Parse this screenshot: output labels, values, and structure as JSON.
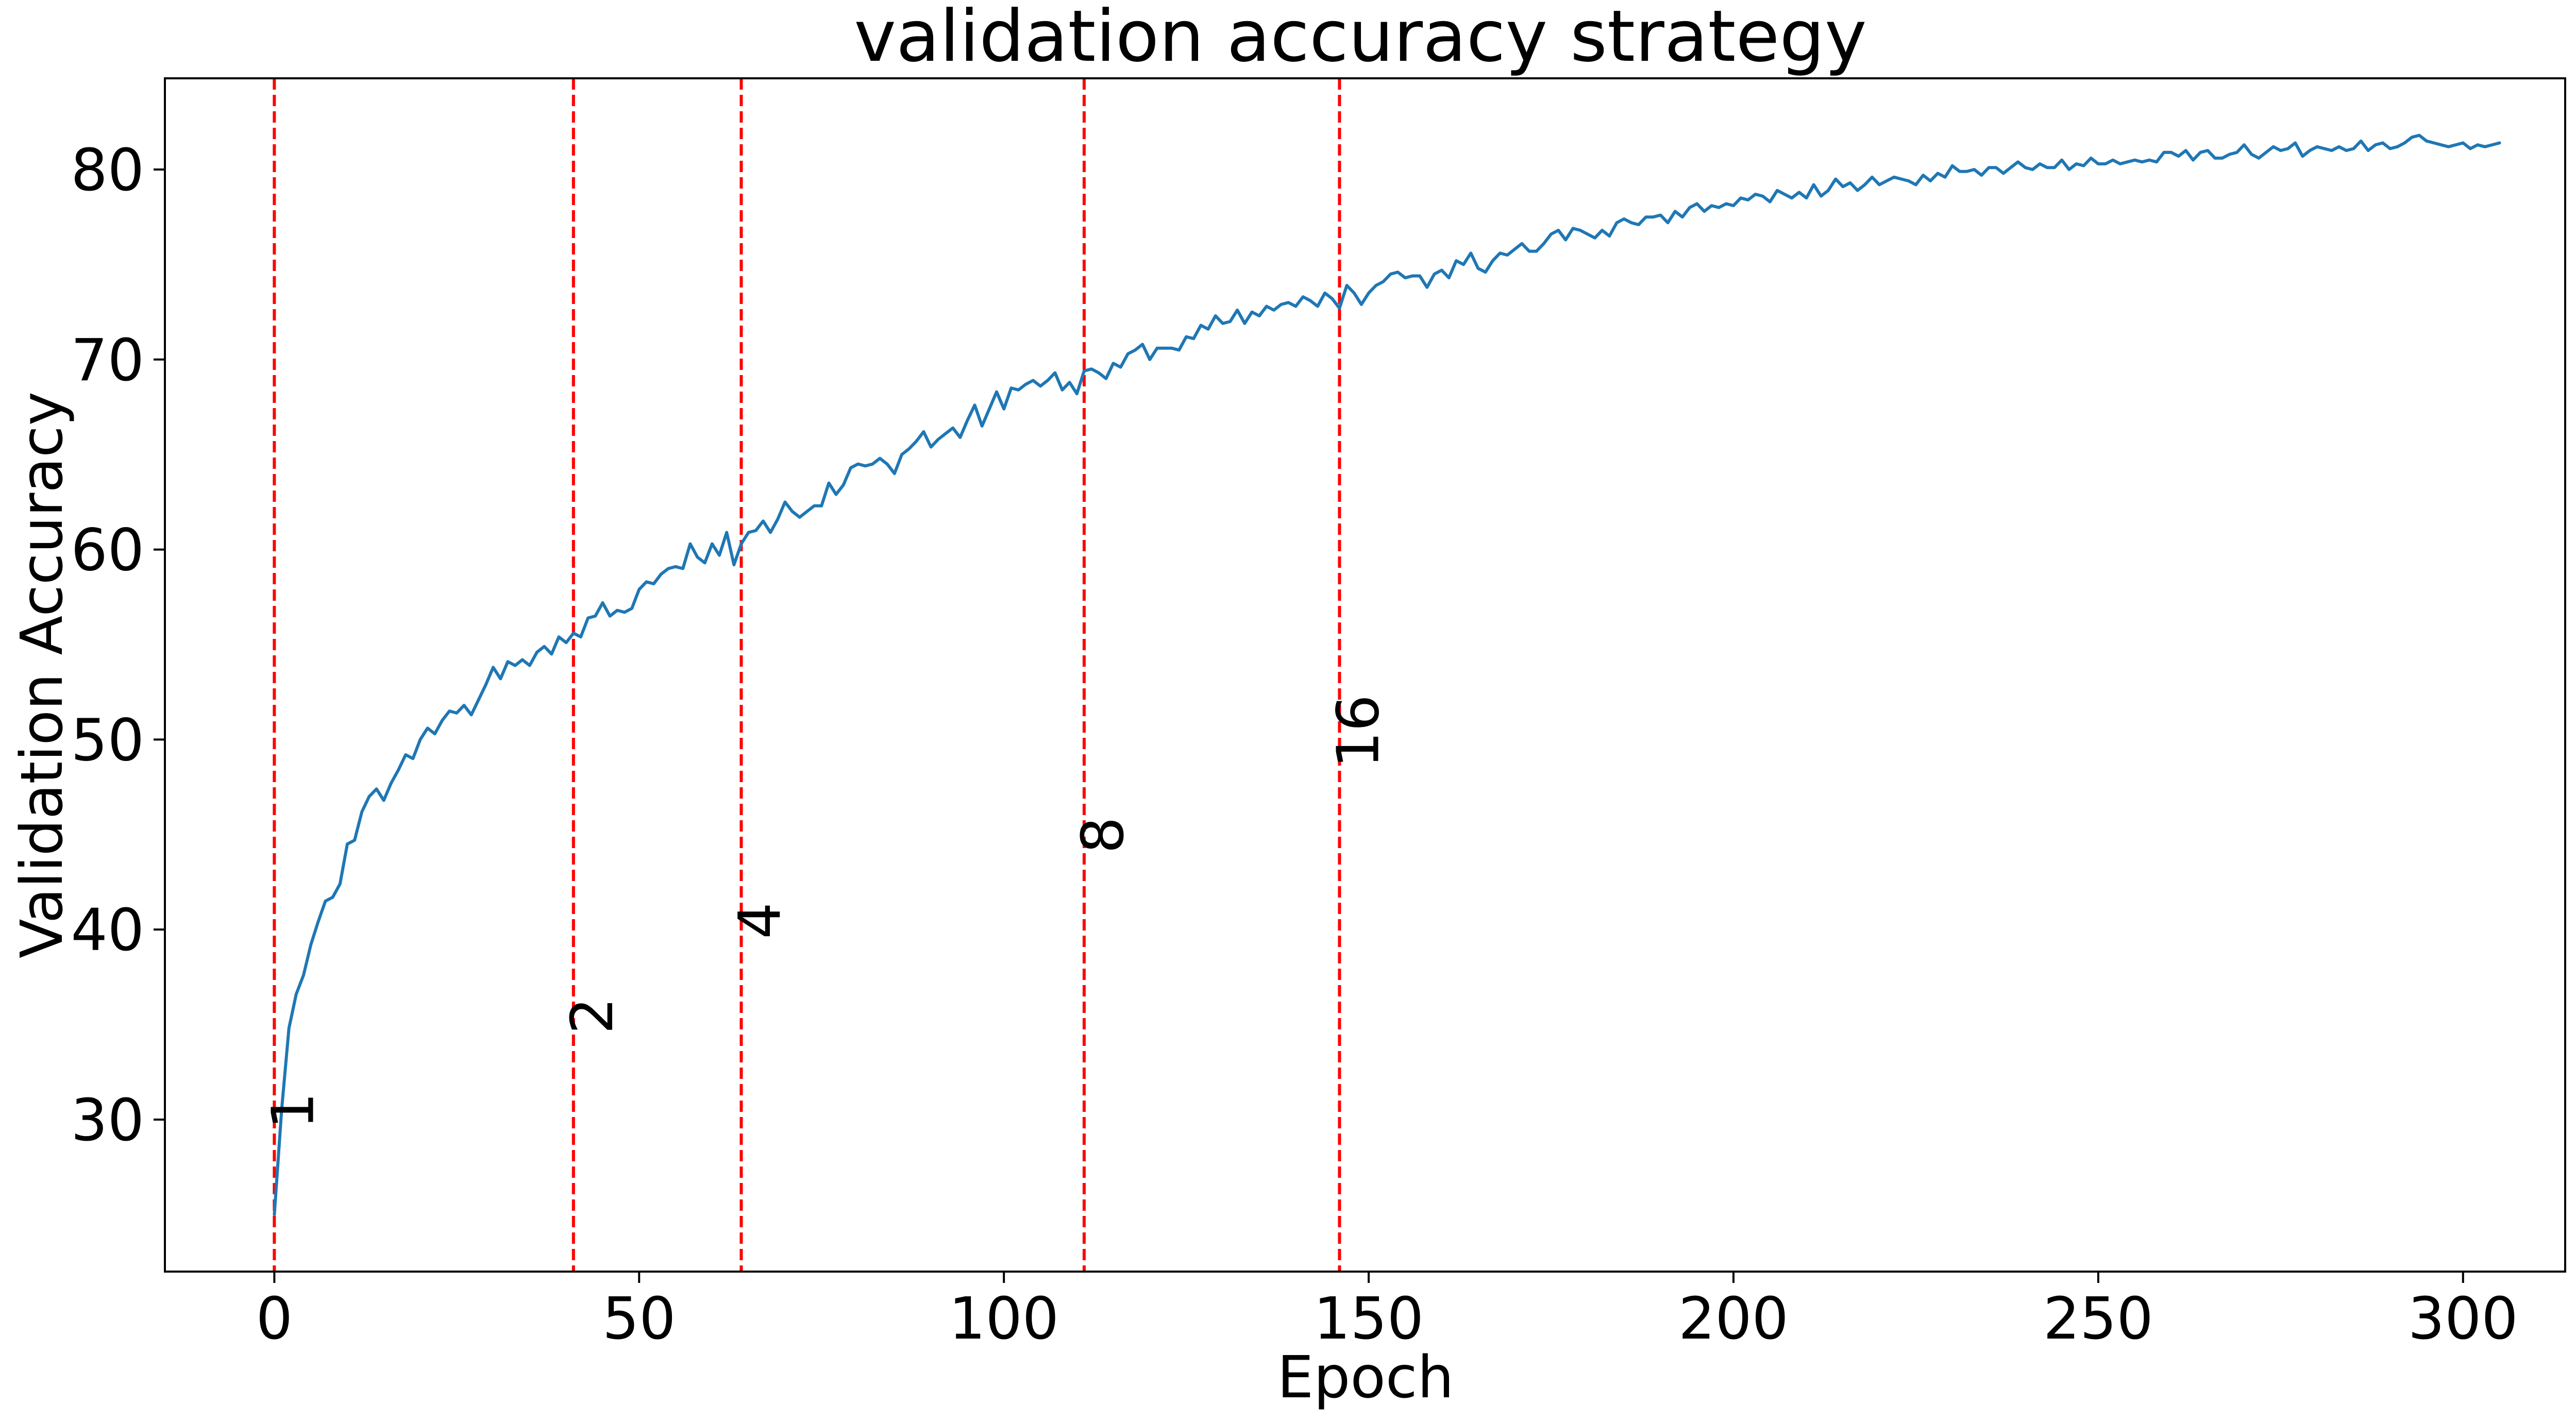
{
  "chart_data": {
    "type": "line",
    "title": "validation accuracy strategy",
    "xlabel": "Epoch",
    "ylabel": "Validation Accuracy",
    "xlim": [
      -15,
      314
    ],
    "ylim": [
      22,
      84.8
    ],
    "xticks": [
      0,
      50,
      100,
      150,
      200,
      250,
      300
    ],
    "yticks": [
      30,
      40,
      50,
      60,
      70,
      80
    ],
    "grid": false,
    "line_color": "#1f77b4",
    "marker_color": "#ff0000",
    "markers": [
      {
        "x": 0,
        "label": "1",
        "label_y": 29.5
      },
      {
        "x": 41,
        "label": "2",
        "label_y": 34.5
      },
      {
        "x": 64,
        "label": "4",
        "label_y": 39.5
      },
      {
        "x": 111,
        "label": "8",
        "label_y": 44
      },
      {
        "x": 146,
        "label": "16",
        "label_y": 48.5
      }
    ],
    "series": [
      {
        "x_start": 0,
        "values": [
          25.0,
          30.5,
          34.8,
          36.6,
          37.6,
          39.2,
          40.4,
          41.5,
          41.7,
          42.4,
          44.5,
          44.7,
          46.2,
          47.0,
          47.4,
          46.8,
          47.7,
          48.4,
          49.2,
          49.0,
          50.0,
          50.6,
          50.3,
          51.0,
          51.5,
          51.4,
          51.8,
          51.3,
          52.1,
          52.9,
          53.8,
          53.2,
          54.1,
          53.9,
          54.2,
          53.9,
          54.6,
          54.9,
          54.5,
          55.4,
          55.1,
          55.6,
          55.4,
          56.4,
          56.5,
          57.2,
          56.5,
          56.8,
          56.7,
          56.9,
          57.9,
          58.3,
          58.2,
          58.7,
          59.0,
          59.1,
          59.0,
          60.3,
          59.6,
          59.3,
          60.3,
          59.7,
          60.9,
          59.2,
          60.3,
          60.9,
          61.0,
          61.5,
          60.9,
          61.6,
          62.5,
          62.0,
          61.7,
          62.0,
          62.3,
          62.3,
          63.5,
          62.9,
          63.4,
          64.3,
          64.5,
          64.4,
          64.5,
          64.8,
          64.5,
          64.0,
          65.0,
          65.3,
          65.7,
          66.2,
          65.4,
          65.8,
          66.1,
          66.4,
          65.9,
          66.8,
          67.6,
          66.5,
          67.4,
          68.3,
          67.4,
          68.5,
          68.4,
          68.7,
          68.9,
          68.6,
          68.9,
          69.3,
          68.4,
          68.8,
          68.2,
          69.4,
          69.5,
          69.3,
          69.0,
          69.8,
          69.6,
          70.3,
          70.5,
          70.8,
          70.0,
          70.6,
          70.6,
          70.6,
          70.5,
          71.2,
          71.1,
          71.8,
          71.6,
          72.3,
          71.9,
          72.0,
          72.6,
          71.9,
          72.5,
          72.3,
          72.8,
          72.6,
          72.9,
          73.0,
          72.8,
          73.3,
          73.1,
          72.8,
          73.5,
          73.2,
          72.7,
          73.9,
          73.5,
          72.9,
          73.5,
          73.9,
          74.1,
          74.5,
          74.6,
          74.3,
          74.4,
          74.4,
          73.8,
          74.5,
          74.7,
          74.3,
          75.2,
          75.0,
          75.6,
          74.8,
          74.6,
          75.2,
          75.6,
          75.5,
          75.8,
          76.1,
          75.7,
          75.7,
          76.1,
          76.6,
          76.8,
          76.3,
          76.9,
          76.8,
          76.6,
          76.4,
          76.8,
          76.5,
          77.2,
          77.4,
          77.2,
          77.1,
          77.5,
          77.5,
          77.6,
          77.2,
          77.8,
          77.5,
          78.0,
          78.2,
          77.8,
          78.1,
          78.0,
          78.2,
          78.1,
          78.5,
          78.4,
          78.7,
          78.6,
          78.3,
          78.9,
          78.7,
          78.5,
          78.8,
          78.5,
          79.2,
          78.6,
          78.9,
          79.5,
          79.1,
          79.3,
          78.9,
          79.2,
          79.6,
          79.2,
          79.4,
          79.6,
          79.5,
          79.4,
          79.2,
          79.7,
          79.4,
          79.8,
          79.6,
          80.2,
          79.9,
          79.9,
          80.0,
          79.7,
          80.1,
          80.1,
          79.8,
          80.1,
          80.4,
          80.1,
          80.0,
          80.3,
          80.1,
          80.1,
          80.5,
          80.0,
          80.3,
          80.2,
          80.6,
          80.3,
          80.3,
          80.5,
          80.3,
          80.4,
          80.5,
          80.4,
          80.5,
          80.4,
          80.9,
          80.9,
          80.7,
          81.0,
          80.5,
          80.9,
          81.0,
          80.6,
          80.6,
          80.8,
          80.9,
          81.3,
          80.8,
          80.6,
          80.9,
          81.2,
          81.0,
          81.1,
          81.4,
          80.7,
          81.0,
          81.2,
          81.1,
          81.0,
          81.2,
          81.0,
          81.1,
          81.5,
          81.0,
          81.3,
          81.4,
          81.1,
          81.2,
          81.4,
          81.7,
          81.8,
          81.5,
          81.4,
          81.3,
          81.2,
          81.3,
          81.4,
          81.1,
          81.3,
          81.2,
          81.3,
          81.4
        ]
      }
    ]
  }
}
